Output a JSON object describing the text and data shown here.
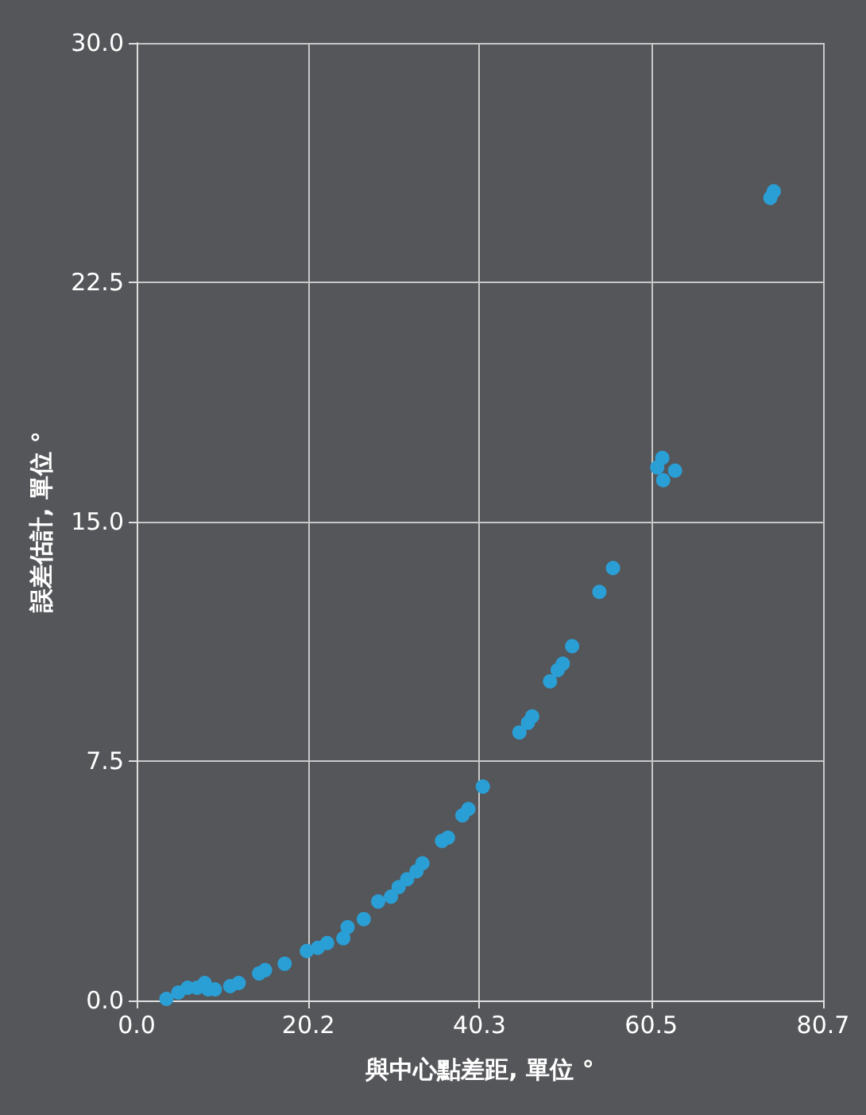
{
  "chart_data": {
    "type": "scatter",
    "xlabel": "與中心點差距, 單位 °",
    "ylabel": "誤差估計, 單位 °",
    "xlim": [
      0,
      80.7
    ],
    "xticks": [
      {
        "value": 0,
        "label": "0.0"
      },
      20.2,
      40.3,
      60.5,
      80.7
    ],
    "ylim": [
      0,
      30
    ],
    "yticks": [
      {
        "value": 0,
        "label": "0.0"
      },
      7.5,
      {
        "value": 15,
        "label": "15.0"
      },
      22.5,
      {
        "value": 30,
        "label": "30.0"
      }
    ],
    "grid": true,
    "marker": "circle",
    "series": [
      {
        "color": "#2a9fd6",
        "x": [
          3.5,
          4.9,
          6.0,
          7.1,
          8.0,
          8.4,
          9.2,
          11.0,
          12.0,
          14.4,
          15.1,
          17.4,
          20.0,
          21.3,
          22.4,
          24.3,
          24.8,
          26.7,
          28.4,
          29.9,
          30.8,
          31.8,
          32.9,
          33.6,
          35.9,
          36.6,
          38.3,
          39.0,
          40.7,
          45.0,
          46.0,
          46.5,
          48.6,
          49.5,
          50.1,
          51.2,
          54.4,
          56.0,
          61.8,
          61.2,
          63.3,
          61.9,
          74.5,
          74.9
        ],
        "values": [
          0.05,
          0.25,
          0.4,
          0.4,
          0.55,
          0.35,
          0.35,
          0.45,
          0.55,
          0.85,
          0.95,
          1.15,
          1.55,
          1.65,
          1.8,
          1.95,
          2.3,
          2.55,
          3.1,
          3.25,
          3.55,
          3.8,
          4.05,
          4.3,
          5.0,
          5.1,
          5.8,
          6.0,
          6.7,
          8.4,
          8.7,
          8.9,
          10.0,
          10.35,
          10.55,
          11.1,
          12.8,
          13.55,
          17.0,
          16.7,
          16.6,
          16.3,
          25.15,
          25.35
        ]
      }
    ]
  }
}
